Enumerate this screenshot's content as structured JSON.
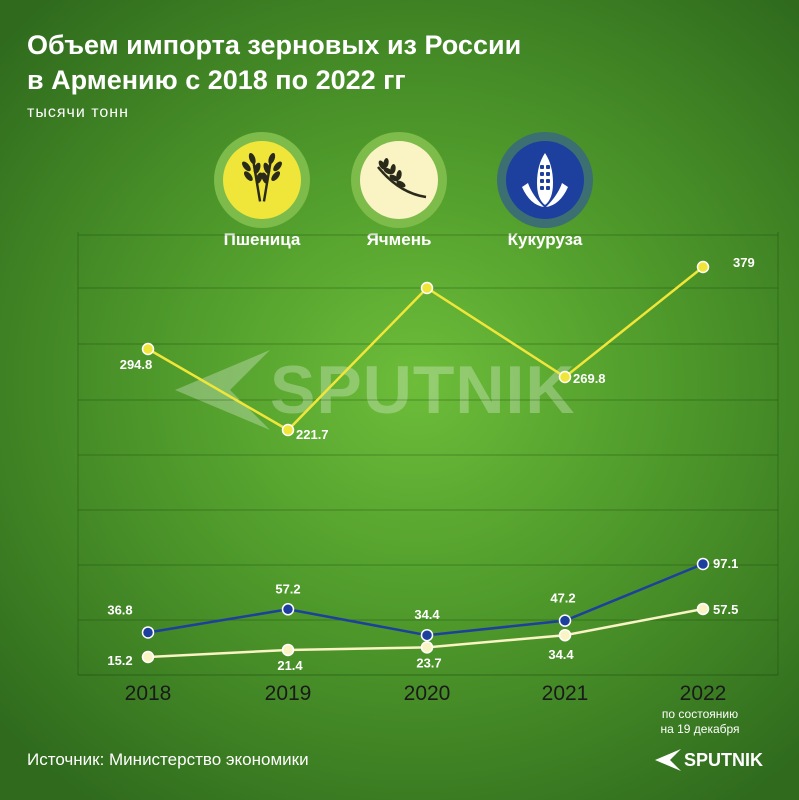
{
  "header": {
    "title_line1": "Объем импорта зерновых из России",
    "title_line2": "в Армению с 2018 по 2022 гг",
    "unit_label": "тысячи тонн"
  },
  "legend": [
    {
      "label": "Пшеница",
      "icon": "wheat-icon",
      "color": "#f0e63a"
    },
    {
      "label": "Ячмень",
      "icon": "barley-icon",
      "color": "#faf3c4"
    },
    {
      "label": "Кукуруза",
      "icon": "corn-icon",
      "color": "#1d3f9e"
    }
  ],
  "footer": {
    "source": "Источник: Министерство экономики",
    "brand": "SPUTNIK",
    "date_note_line1": "по состоянию",
    "date_note_line2": "на 19 декабря"
  },
  "watermark": "SPUTNIK",
  "chart_data": {
    "type": "line",
    "x": [
      "2018",
      "2019",
      "2020",
      "2021",
      "2022"
    ],
    "ylabel": "тысячи тонн",
    "grid": true,
    "legend_position": "top",
    "series": [
      {
        "name": "Пшеница",
        "color": "#f0e63a",
        "values": [
          294.8,
          221.7,
          null,
          269.8,
          379
        ],
        "labels": [
          "294.8",
          "221.7",
          "",
          "269.8",
          "379"
        ]
      },
      {
        "name": "Кукуруза",
        "color": "#1d3f9e",
        "values": [
          36.8,
          57.2,
          34.4,
          47.2,
          97.1
        ],
        "labels": [
          "36.8",
          "57.2",
          "34.4",
          "47.2",
          "97.1"
        ]
      },
      {
        "name": "Ячмень",
        "color": "#faf3c4",
        "values": [
          15.2,
          21.4,
          23.7,
          34.4,
          57.5
        ],
        "labels": [
          "15.2",
          "21.4",
          "23.7",
          "34.4",
          "57.5"
        ]
      }
    ]
  }
}
